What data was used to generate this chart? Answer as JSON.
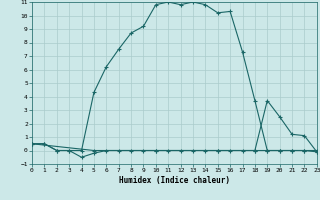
{
  "xlabel": "Humidex (Indice chaleur)",
  "bg_color": "#cce8e8",
  "grid_color": "#aacccc",
  "line_color": "#1a6666",
  "xlim": [
    0,
    23
  ],
  "ylim": [
    -1,
    11
  ],
  "xticks": [
    0,
    1,
    2,
    3,
    4,
    5,
    6,
    7,
    8,
    9,
    10,
    11,
    12,
    13,
    14,
    15,
    16,
    17,
    18,
    19,
    20,
    21,
    22,
    23
  ],
  "yticks": [
    -1,
    0,
    1,
    2,
    3,
    4,
    5,
    6,
    7,
    8,
    9,
    10,
    11
  ],
  "series": [
    {
      "x": [
        0,
        1,
        2,
        3,
        4,
        5,
        6,
        7,
        8,
        9,
        10,
        11,
        12,
        13,
        14,
        15,
        16,
        17,
        18,
        19,
        20,
        21,
        22,
        23
      ],
      "y": [
        0.5,
        0.5,
        0.0,
        0.0,
        0.0,
        4.3,
        6.2,
        7.5,
        8.7,
        9.2,
        10.8,
        11.0,
        10.8,
        11.0,
        10.8,
        10.2,
        10.3,
        7.3,
        3.7,
        0.0,
        0.0,
        0.0,
        0.0,
        0.0
      ],
      "linestyle": "-"
    },
    {
      "x": [
        0,
        1,
        2,
        3,
        4,
        5,
        6,
        7,
        8,
        9,
        10,
        11,
        12,
        13,
        14,
        15,
        16,
        17,
        18,
        19,
        20,
        21,
        22,
        23
      ],
      "y": [
        0.5,
        0.5,
        0.0,
        0.0,
        -0.5,
        -0.2,
        0.0,
        0.0,
        0.0,
        0.0,
        0.0,
        0.0,
        0.0,
        0.0,
        0.0,
        0.0,
        0.0,
        0.0,
        0.0,
        0.0,
        0.0,
        0.0,
        0.0,
        -0.1
      ],
      "linestyle": "-"
    },
    {
      "x": [
        0,
        5,
        10,
        15,
        18,
        19,
        20,
        21,
        22,
        23
      ],
      "y": [
        0.5,
        0.0,
        0.0,
        0.0,
        0.0,
        3.7,
        2.5,
        1.2,
        1.1,
        -0.1
      ],
      "linestyle": "-"
    }
  ]
}
